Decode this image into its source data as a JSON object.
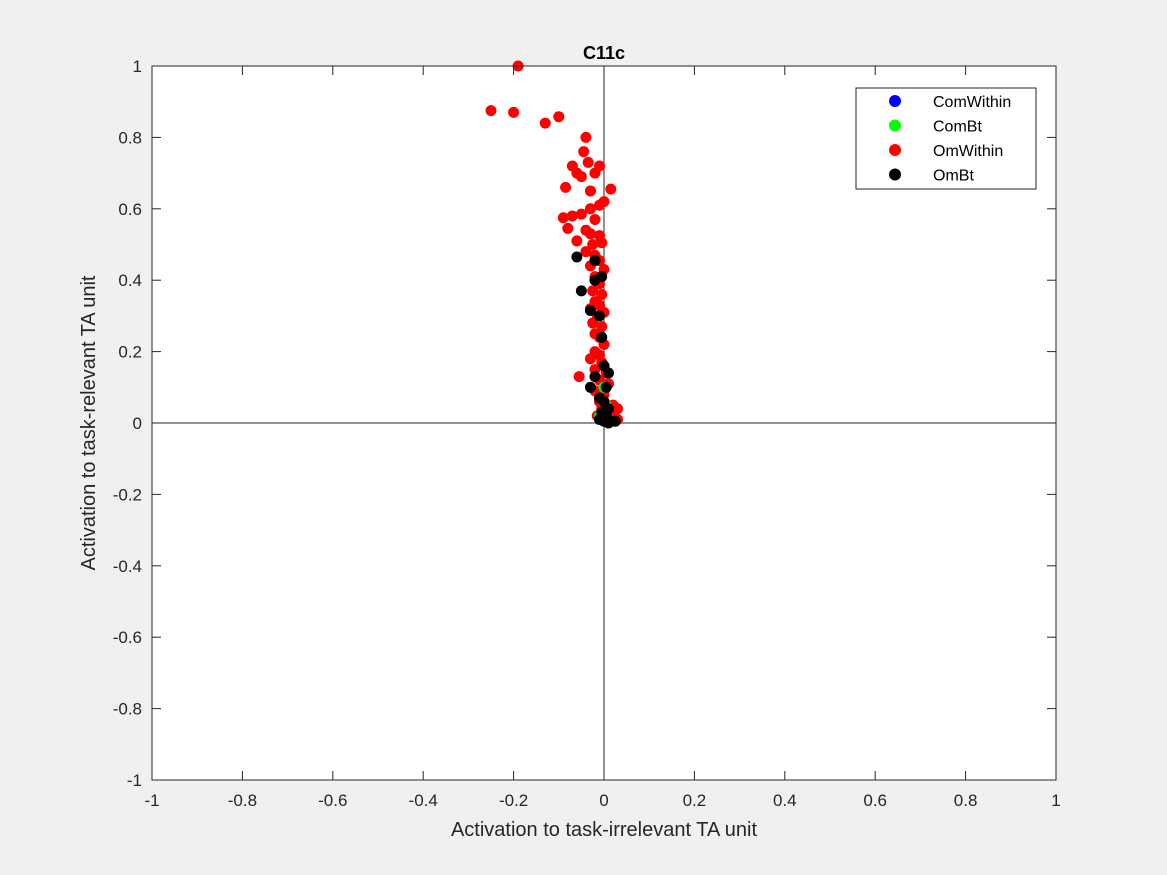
{
  "chart_data": {
    "type": "scatter",
    "title": "C11c",
    "xlabel": "Activation to task-irrelevant TA unit",
    "ylabel": "Activation to task-relevant TA unit",
    "xlim": [
      -1,
      1
    ],
    "ylim": [
      -1,
      1
    ],
    "xticks": [
      "-1",
      "-0.8",
      "-0.6",
      "-0.4",
      "-0.2",
      "0",
      "0.2",
      "0.4",
      "0.6",
      "0.8",
      "1"
    ],
    "yticks": [
      "-1",
      "-0.8",
      "-0.6",
      "-0.4",
      "-0.2",
      "0",
      "0.2",
      "0.4",
      "0.6",
      "0.8",
      "1"
    ],
    "grid": false,
    "zero_lines": true,
    "legend_position": "top-right",
    "series": [
      {
        "name": "ComWithin",
        "color": "#0000ff",
        "points": []
      },
      {
        "name": "ComBt",
        "color": "#00ff00",
        "points": [
          [
            0.0,
            0.16
          ],
          [
            -0.01,
            0.02
          ],
          [
            0.0,
            0.1
          ],
          [
            0.005,
            0.05
          ]
        ]
      },
      {
        "name": "OmWithin",
        "color": "#ff0000",
        "points": [
          [
            -0.19,
            1.0
          ],
          [
            -0.25,
            0.875
          ],
          [
            -0.2,
            0.87
          ],
          [
            -0.1,
            0.858
          ],
          [
            -0.13,
            0.84
          ],
          [
            -0.04,
            0.8
          ],
          [
            -0.045,
            0.76
          ],
          [
            -0.035,
            0.73
          ],
          [
            -0.07,
            0.72
          ],
          [
            -0.01,
            0.72
          ],
          [
            -0.06,
            0.7
          ],
          [
            -0.02,
            0.7
          ],
          [
            -0.05,
            0.69
          ],
          [
            -0.085,
            0.66
          ],
          [
            0.015,
            0.655
          ],
          [
            -0.03,
            0.65
          ],
          [
            0.0,
            0.62
          ],
          [
            -0.01,
            0.61
          ],
          [
            -0.03,
            0.6
          ],
          [
            -0.07,
            0.58
          ],
          [
            -0.09,
            0.575
          ],
          [
            -0.05,
            0.585
          ],
          [
            -0.02,
            0.57
          ],
          [
            -0.08,
            0.545
          ],
          [
            -0.04,
            0.54
          ],
          [
            -0.03,
            0.53
          ],
          [
            -0.01,
            0.525
          ],
          [
            -0.06,
            0.51
          ],
          [
            -0.025,
            0.5
          ],
          [
            -0.005,
            0.505
          ],
          [
            -0.04,
            0.48
          ],
          [
            -0.02,
            0.47
          ],
          [
            -0.01,
            0.455
          ],
          [
            -0.03,
            0.44
          ],
          [
            0.0,
            0.43
          ],
          [
            -0.02,
            0.41
          ],
          [
            -0.01,
            0.39
          ],
          [
            -0.025,
            0.37
          ],
          [
            -0.005,
            0.36
          ],
          [
            -0.02,
            0.34
          ],
          [
            -0.01,
            0.33
          ],
          [
            -0.03,
            0.32
          ],
          [
            0.0,
            0.31
          ],
          [
            -0.015,
            0.3
          ],
          [
            -0.025,
            0.28
          ],
          [
            -0.005,
            0.27
          ],
          [
            -0.02,
            0.25
          ],
          [
            -0.01,
            0.24
          ],
          [
            0.0,
            0.22
          ],
          [
            -0.02,
            0.2
          ],
          [
            -0.01,
            0.19
          ],
          [
            -0.03,
            0.18
          ],
          [
            -0.005,
            0.17
          ],
          [
            -0.02,
            0.15
          ],
          [
            0.005,
            0.14
          ],
          [
            -0.055,
            0.13
          ],
          [
            -0.01,
            0.12
          ],
          [
            0.01,
            0.11
          ],
          [
            -0.02,
            0.09
          ],
          [
            0.0,
            0.08
          ],
          [
            -0.01,
            0.06
          ],
          [
            0.02,
            0.05
          ],
          [
            -0.005,
            0.04
          ],
          [
            0.03,
            0.04
          ],
          [
            0.01,
            0.03
          ],
          [
            -0.015,
            0.02
          ],
          [
            0.02,
            0.02
          ],
          [
            0.0,
            0.015
          ],
          [
            0.015,
            0.01
          ],
          [
            0.03,
            0.01
          ]
        ]
      },
      {
        "name": "OmBt",
        "color": "#000000",
        "points": [
          [
            -0.06,
            0.465
          ],
          [
            -0.02,
            0.455
          ],
          [
            -0.005,
            0.41
          ],
          [
            -0.02,
            0.4
          ],
          [
            -0.05,
            0.37
          ],
          [
            -0.03,
            0.315
          ],
          [
            -0.01,
            0.3
          ],
          [
            -0.005,
            0.24
          ],
          [
            0.0,
            0.16
          ],
          [
            0.01,
            0.14
          ],
          [
            -0.02,
            0.13
          ],
          [
            0.005,
            0.1
          ],
          [
            -0.03,
            0.1
          ],
          [
            -0.01,
            0.07
          ],
          [
            0.0,
            0.06
          ],
          [
            0.01,
            0.04
          ],
          [
            -0.005,
            0.03
          ],
          [
            0.005,
            0.02
          ],
          [
            -0.01,
            0.01
          ],
          [
            0.0,
            0.005
          ],
          [
            0.015,
            0.005
          ],
          [
            0.025,
            0.005
          ],
          [
            0.01,
            0.0
          ]
        ]
      }
    ]
  }
}
